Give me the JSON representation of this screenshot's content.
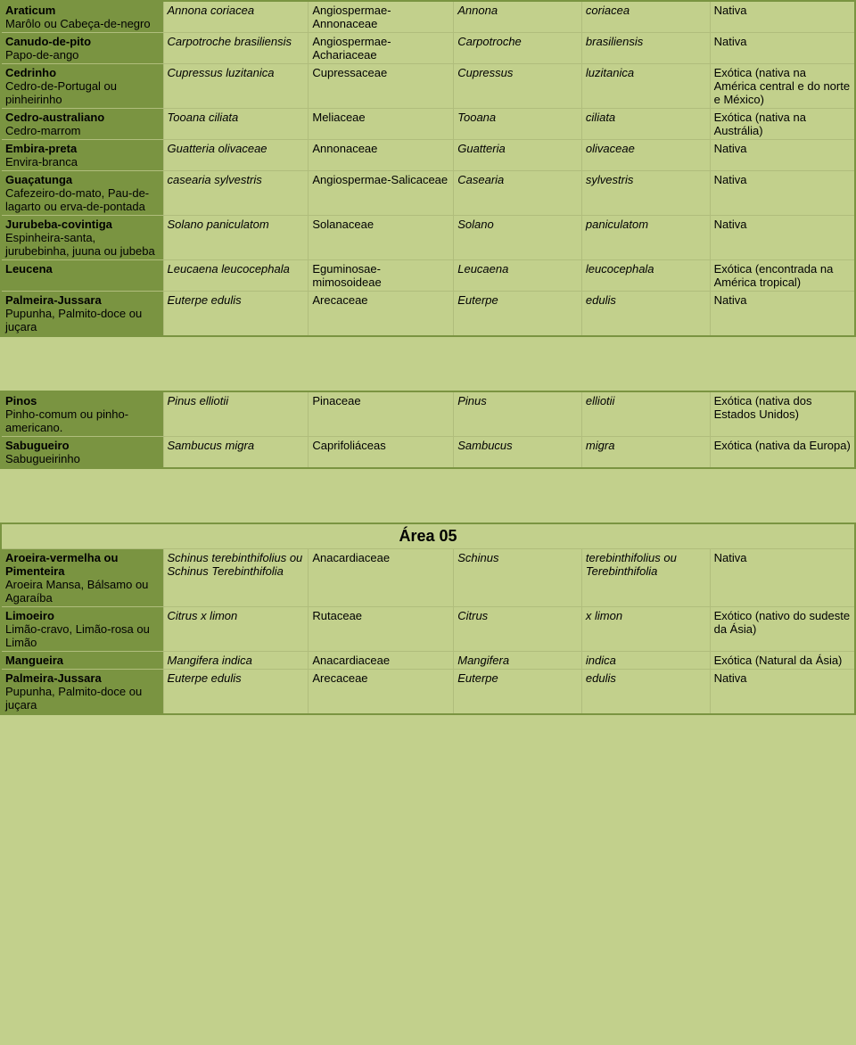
{
  "tables": [
    {
      "rows": [
        {
          "name": "Araticum",
          "sub": "Marôlo ou Cabeça-de-negro",
          "sci": "Annona coriacea",
          "fam": "Angiospermae-Annonaceae",
          "gen": "Annona",
          "sp": "coriacea",
          "orig": "Nativa"
        },
        {
          "name": "Canudo-de-pito",
          "sub": "Papo-de-ango",
          "sci": "Carpotroche brasiliensis",
          "fam": "Angiospermae-Achariaceae",
          "gen": "Carpotroche",
          "sp": "brasiliensis",
          "orig": "Nativa"
        },
        {
          "name": "Cedrinho",
          "sub": "Cedro-de-Portugal ou pinheirinho",
          "sci": "Cupressus luzitanica",
          "fam": "Cupressaceae",
          "gen": "Cupressus",
          "sp": "luzitanica",
          "orig": "Exótica (nativa na América central e do norte e México)"
        },
        {
          "name": "Cedro-australiano",
          "sub": "Cedro-marrom",
          "sci": "Tooana ciliata",
          "fam": "Meliaceae",
          "gen": "Tooana",
          "sp": "ciliata",
          "orig": "Exótica (nativa na Austrália)"
        },
        {
          "name": "Embira-preta",
          "sub": "Envira-branca",
          "sci": "Guatteria olivaceae",
          "fam": "Annonaceae",
          "gen": "Guatteria",
          "sp": "olivaceae",
          "orig": "Nativa"
        },
        {
          "name": "Guaçatunga",
          "sub": "Cafezeiro-do-mato, Pau-de-lagarto ou erva-de-pontada",
          "sci": "casearia sylvestris",
          "fam": "Angiospermae-Salicaceae",
          "gen": "Casearia",
          "sp": "sylvestris",
          "orig": "Nativa"
        },
        {
          "name": "Jurubeba-covintiga",
          "sub": "Espinheira-santa, jurubebinha, juuna ou jubeba",
          "sci": "Solano paniculatom",
          "fam": "Solanaceae",
          "gen": "Solano",
          "sp": "paniculatom",
          "orig": "Nativa"
        },
        {
          "name": "Leucena",
          "sub": "",
          "sci": "Leucaena leucocephala",
          "fam": "Eguminosae-mimosoideae",
          "gen": "Leucaena",
          "sp": "leucocephala",
          "orig": "Exótica (encontrada na América tropical)"
        },
        {
          "name": "Palmeira-Jussara",
          "sub": "Pupunha, Palmito-doce ou juçara",
          "sci": "Euterpe edulis",
          "fam": "Arecaceae",
          "gen": "Euterpe",
          "sp": "edulis",
          "orig": "Nativa"
        }
      ]
    },
    {
      "rows": [
        {
          "name": "Pinos",
          "sub": "Pinho-comum ou pinho-americano.",
          "sci": "Pinus elliotii",
          "fam": "Pinaceae",
          "gen": "Pinus",
          "sp": "elliotii",
          "orig": "Exótica (nativa dos Estados Unidos)"
        },
        {
          "name": "Sabugueiro",
          "sub": "Sabugueirinho",
          "sci": "Sambucus migra",
          "fam": "Caprifoliáceas",
          "gen": "Sambucus",
          "sp": "migra",
          "orig": "Exótica (nativa da Europa)"
        }
      ]
    },
    {
      "title": "Área 05",
      "rows": [
        {
          "name": "Aroeira-vermelha ou Pimenteira",
          "sub": "Aroeira Mansa, Bálsamo ou Agaraíba",
          "sci": "Schinus terebinthifolius ou Schinus Terebinthifolia",
          "fam": "Anacardiaceae",
          "gen": "Schinus",
          "sp": "terebinthifolius ou Terebinthifolia",
          "orig": "Nativa"
        },
        {
          "name": "Limoeiro",
          "sub": "Limão-cravo, Limão-rosa ou Limão",
          "sci": "Citrus x limon",
          "fam": "Rutaceae",
          "gen": "Citrus",
          "sp": "x limon",
          "orig": "Exótico (nativo do sudeste da Ásia)"
        },
        {
          "name": "Mangueira",
          "sub": "",
          "sci": "Mangifera indica",
          "fam": "Anacardiaceae",
          "gen": "Mangifera",
          "sp": "indica",
          "orig": "Exótica (Natural da Ásia)"
        },
        {
          "name": "Palmeira-Jussara",
          "sub": "Pupunha, Palmito-doce ou juçara",
          "sci": "Euterpe edulis",
          "fam": "Arecaceae",
          "gen": "Euterpe",
          "sp": "edulis",
          "orig": "Nativa"
        }
      ]
    }
  ],
  "col_widths": [
    "19%",
    "17%",
    "17%",
    "15%",
    "15%",
    "17%"
  ]
}
